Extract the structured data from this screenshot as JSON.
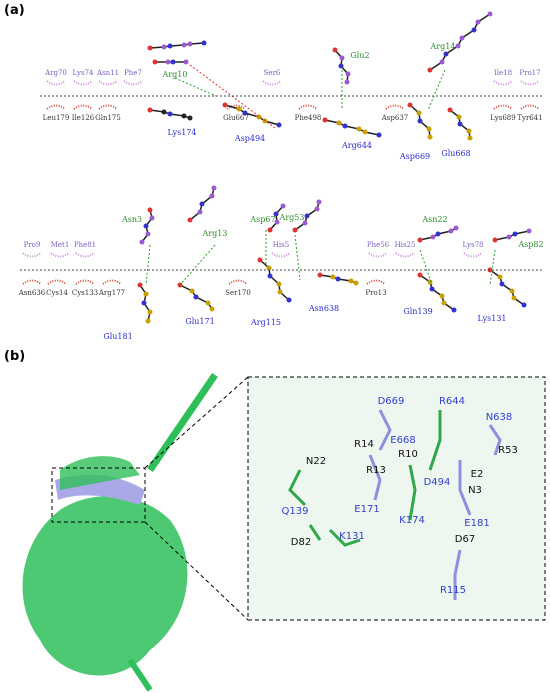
{
  "panel_a": {
    "label": "(a)",
    "complex_1": {
      "top": [
        "Arg70",
        "Lys74",
        "Asn11",
        "Phe7",
        "Arg10",
        "Ser6",
        "Glu2",
        "Arg14",
        "Ile18",
        "Pro17"
      ],
      "bottom": [
        "Leu179",
        "Ile126",
        "Gln175",
        "Lys174",
        "Glu667",
        "Asp494",
        "Phe498",
        "Arg644",
        "Asp637",
        "Asp669",
        "Glu668",
        "Lys689",
        "Tyr641"
      ]
    },
    "complex_2": {
      "top": [
        "Pro9",
        "Met1",
        "Phe81",
        "Asn3",
        "Arg13",
        "Asp67",
        "Arg53",
        "His5",
        "Phe56",
        "His25",
        "Asn22",
        "Lys78",
        "Asp82"
      ],
      "bottom": [
        "Asn636",
        "Cys14",
        "Cys133",
        "Arg177",
        "Glu181",
        "Glu171",
        "Ser170",
        "Arg115",
        "Asn638",
        "Pro13",
        "Gln139",
        "Lys131"
      ]
    }
  },
  "panel_b": {
    "label": "(b)",
    "residues": [
      "D669",
      "R644",
      "N638",
      "R14",
      "E668",
      "R10",
      "R53",
      "N22",
      "R13",
      "D494",
      "E2",
      "N3",
      "Q139",
      "E171",
      "K174",
      "E181",
      "D82",
      "K131",
      "D67",
      "R115"
    ]
  }
}
